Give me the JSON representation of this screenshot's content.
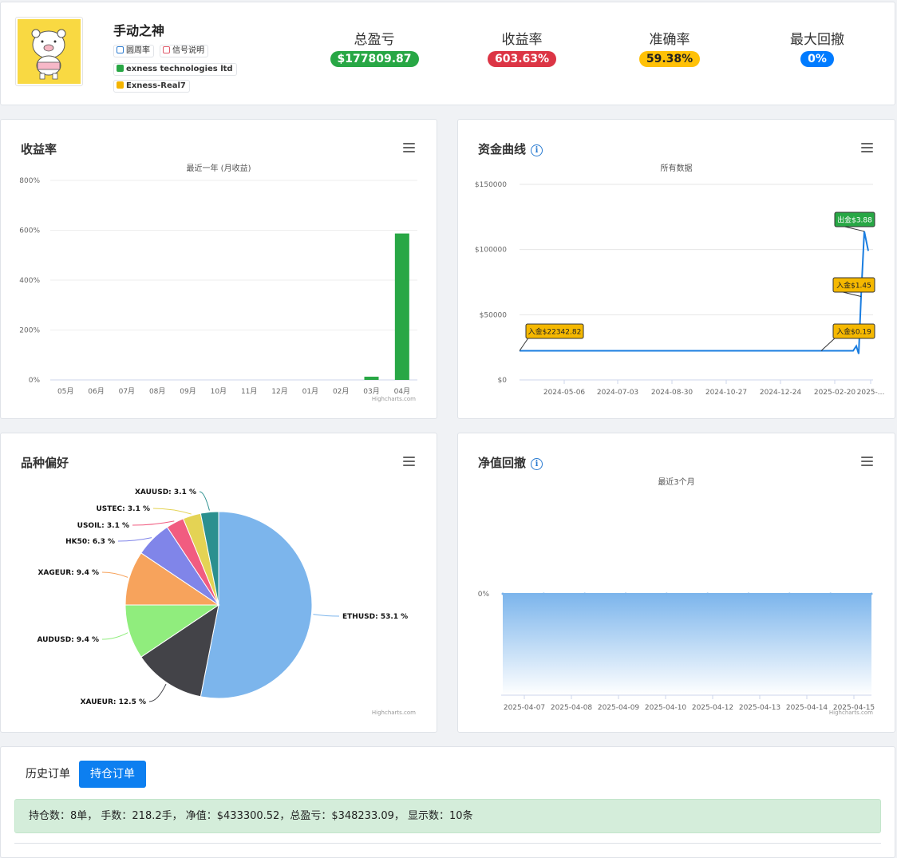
{
  "profile": {
    "name": "手动之神",
    "tags": [
      "圆周率",
      "信号说明",
      "exness technologies ltd",
      "Exness-Real7"
    ]
  },
  "stats": [
    {
      "label": "总盈亏",
      "value": "$177809.87",
      "color": "#28a745"
    },
    {
      "label": "收益率",
      "value": "603.63%",
      "color": "#dc3545"
    },
    {
      "label": "准确率",
      "value": "59.38%",
      "color": "#ffc107"
    },
    {
      "label": "最大回撤",
      "value": "0%",
      "color": "#007bff"
    }
  ],
  "credit": "Highcharts.com",
  "panels": {
    "returns": {
      "title": "收益率",
      "subtitle": "最近一年 (月收益)"
    },
    "equity": {
      "title": "资金曲线",
      "subtitle": "所有数据"
    },
    "symbols": {
      "title": "品种偏好"
    },
    "drawdown": {
      "title": "净值回撤",
      "subtitle": "最近3个月"
    }
  },
  "chart_data": [
    {
      "type": "bar",
      "title": "收益率",
      "subtitle": "最近一年 (月收益)",
      "categories": [
        "05月",
        "06月",
        "07月",
        "08月",
        "09月",
        "10月",
        "11月",
        "12月",
        "01月",
        "02月",
        "03月",
        "04月"
      ],
      "values": [
        0,
        0,
        0,
        0,
        0,
        0,
        0,
        0,
        0,
        0,
        13,
        587
      ],
      "ylim": [
        0,
        800
      ],
      "yticks": [
        "0%",
        "200%",
        "400%",
        "600%",
        "800%"
      ],
      "color": "#28a745",
      "grid": true
    },
    {
      "type": "line",
      "title": "资金曲线",
      "subtitle": "所有数据",
      "x_ticks": [
        "2024-05-06",
        "2024-07-03",
        "2024-08-30",
        "2024-10-27",
        "2024-12-24",
        "2025-02-20",
        "2025-..."
      ],
      "y_ticks": [
        "$0",
        "$50000",
        "$100000",
        "$150000"
      ],
      "ylim": [
        0,
        150000
      ],
      "approx_values": [
        22342,
        22342,
        22342,
        22342,
        22342,
        22342,
        22342,
        22342,
        26000,
        20000,
        64000,
        114000,
        99000
      ],
      "annotations": [
        "入金$22342.82",
        "入金$0.19",
        "入金$1.45",
        "出金$3.88"
      ],
      "color": "#1a7de0"
    },
    {
      "type": "pie",
      "title": "品种偏好",
      "slices": [
        {
          "name": "ETHUSD",
          "value": 53.1,
          "label": "ETHUSD: 53.1 %",
          "color": "#7cb5ec"
        },
        {
          "name": "XAUEUR",
          "value": 12.5,
          "label": "XAUEUR: 12.5 %",
          "color": "#434348"
        },
        {
          "name": "AUDUSD",
          "value": 9.4,
          "label": "AUDUSD: 9.4 %",
          "color": "#90ed7d"
        },
        {
          "name": "XAGEUR",
          "value": 9.4,
          "label": "XAGEUR: 9.4 %",
          "color": "#f7a35c"
        },
        {
          "name": "HK50",
          "value": 6.3,
          "label": "HK50: 6.3 %",
          "color": "#8085e9"
        },
        {
          "name": "USOIL",
          "value": 3.1,
          "label": "USOIL: 3.1 %",
          "color": "#f15c80"
        },
        {
          "name": "USTEC",
          "value": 3.1,
          "label": "USTEC: 3.1 %",
          "color": "#e4d354"
        },
        {
          "name": "XAUUSD",
          "value": 3.1,
          "label": "XAUUSD: 3.1 %",
          "color": "#2b908f"
        }
      ]
    },
    {
      "type": "area",
      "title": "净值回撤",
      "subtitle": "最近3个月",
      "x_ticks": [
        "2025-04-07",
        "2025-04-08",
        "2025-04-09",
        "2025-04-10",
        "2025-04-12",
        "2025-04-13",
        "2025-04-14",
        "2025-04-15"
      ],
      "y_ticks": [
        "0%"
      ],
      "values": [
        0,
        0,
        0,
        0,
        0,
        0,
        0,
        0,
        0,
        0
      ],
      "color": "#7cb5ec"
    }
  ],
  "orders": {
    "tabs": [
      "历史订单",
      "持仓订单"
    ],
    "active_tab": "持仓订单",
    "summary": "持仓数：8单， 手数：218.2手， 净值：$433300.52，总盈亏：$348233.09， 显示数：10条"
  }
}
